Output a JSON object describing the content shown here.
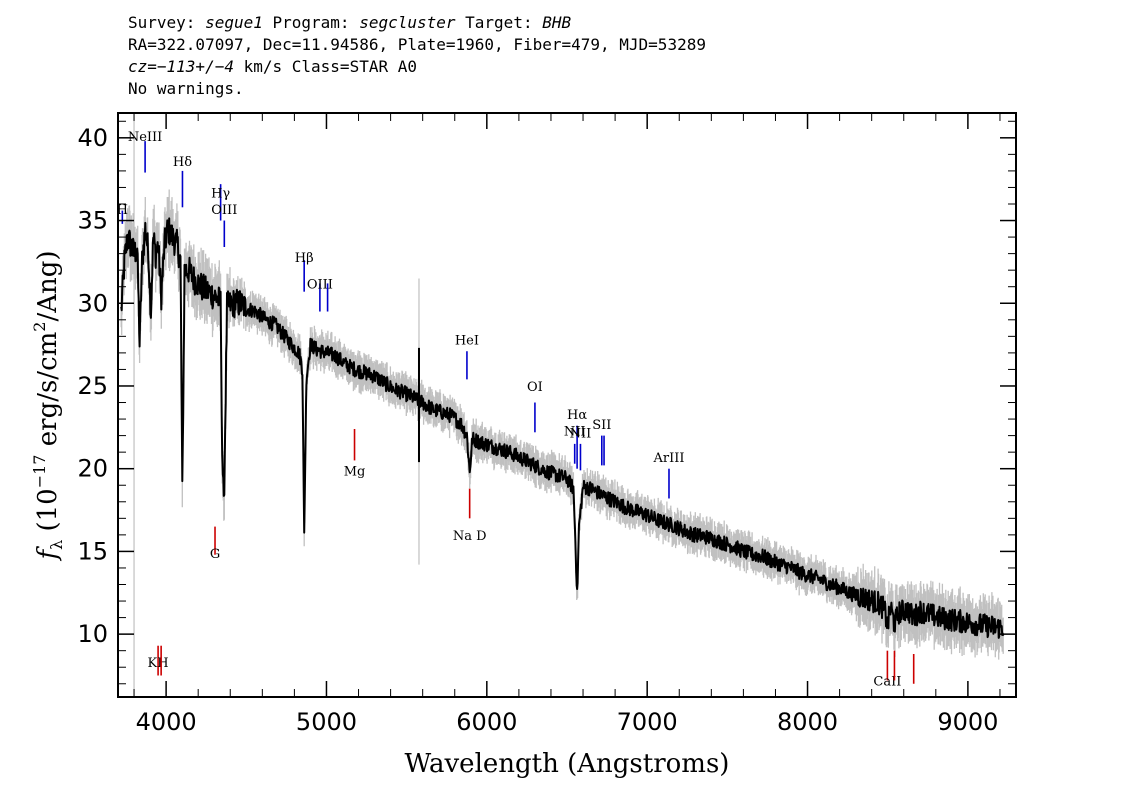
{
  "header": {
    "line1": {
      "survey_label": "Survey: ",
      "survey": "segue1",
      "program_label": " Program: ",
      "program": "segcluster",
      "target_label": " Target: ",
      "target": "BHB"
    },
    "line2": "RA=322.07097, Dec=11.94586, Plate=1960, Fiber=479, MJD=53289",
    "line3": {
      "cz": "cz=−113+/−4",
      "rest": " km/s Class=STAR A0"
    },
    "line4": "No warnings."
  },
  "chart_data": {
    "type": "line",
    "xlabel": "Wavelength (Angstroms)",
    "ylabel_parts": {
      "f": "f",
      "sub": "λ",
      "open": " (10",
      "exp": "−17",
      "mid": " erg/s/cm",
      "exp2": "2",
      "close": "/Ang)"
    },
    "xlim": [
      3700,
      9300
    ],
    "ylim": [
      6.2,
      41.5
    ],
    "x_ticks": [
      4000,
      5000,
      6000,
      7000,
      8000,
      9000
    ],
    "y_ticks": [
      10,
      15,
      20,
      25,
      30,
      35,
      40
    ],
    "grid": false,
    "colors": {
      "spectrum": "#000000",
      "error": "#c0c0c0",
      "emission": "#0000cc",
      "absorption": "#cc0000"
    },
    "series": [
      {
        "kind": "flux",
        "x": [
          3720,
          3740,
          3760,
          3780,
          3800,
          3820,
          3835,
          3850,
          3870,
          3890,
          3905,
          3920,
          3935,
          3950,
          3970,
          3990,
          4010,
          4040,
          4070,
          4090,
          4101,
          4115,
          4140,
          4170,
          4200,
          4240,
          4280,
          4320,
          4340,
          4350,
          4360,
          4380,
          4420,
          4460,
          4500,
          4560,
          4620,
          4680,
          4740,
          4800,
          4830,
          4850,
          4861,
          4875,
          4900,
          4940,
          5000,
          5060,
          5120,
          5180,
          5240,
          5300,
          5360,
          5420,
          5480,
          5540,
          5600,
          5660,
          5720,
          5780,
          5840,
          5876,
          5893,
          5910,
          5960,
          6020,
          6080,
          6140,
          6200,
          6260,
          6320,
          6380,
          6440,
          6500,
          6540,
          6555,
          6563,
          6575,
          6600,
          6650,
          6700,
          6760,
          6820,
          6880,
          6940,
          7000,
          7060,
          7120,
          7180,
          7240,
          7300,
          7360,
          7420,
          7480,
          7540,
          7600,
          7660,
          7720,
          7780,
          7840,
          7900,
          7960,
          8020,
          8080,
          8140,
          8200,
          8260,
          8320,
          8380,
          8440,
          8480,
          8498,
          8520,
          8542,
          8570,
          8620,
          8662,
          8700,
          8760,
          8820,
          8880,
          8940,
          9000,
          9060,
          9120,
          9180,
          9220
        ],
        "y": [
          29.5,
          32.5,
          34.0,
          33.5,
          33.0,
          33.3,
          27.5,
          32.5,
          34.5,
          33.0,
          29.5,
          34.0,
          33.0,
          33.5,
          30.5,
          33.5,
          34.5,
          34.0,
          33.5,
          32.5,
          18.5,
          32.0,
          32.0,
          31.5,
          31.2,
          30.8,
          30.6,
          30.3,
          30.0,
          21.0,
          17.5,
          29.8,
          30.0,
          30.0,
          29.7,
          29.5,
          29.0,
          28.7,
          28.0,
          27.3,
          27.0,
          26.0,
          16.0,
          25.5,
          27.5,
          27.2,
          27.0,
          26.8,
          26.3,
          26.0,
          25.8,
          25.6,
          25.2,
          24.8,
          24.6,
          24.3,
          24.0,
          23.6,
          23.4,
          23.2,
          22.7,
          22.0,
          19.8,
          21.8,
          21.6,
          21.4,
          21.2,
          21.0,
          20.7,
          20.4,
          20.1,
          19.8,
          19.6,
          19.4,
          18.8,
          15.0,
          12.3,
          16.5,
          18.9,
          18.8,
          18.5,
          18.2,
          17.9,
          17.6,
          17.4,
          17.2,
          16.9,
          16.7,
          16.5,
          16.2,
          16.0,
          15.9,
          15.7,
          15.5,
          15.3,
          15.0,
          14.8,
          14.7,
          14.4,
          14.2,
          14.0,
          13.7,
          13.5,
          13.3,
          13.0,
          12.8,
          12.5,
          12.3,
          12.1,
          11.9,
          11.5,
          10.5,
          11.6,
          10.6,
          11.3,
          11.5,
          11.0,
          11.4,
          11.2,
          11.0,
          10.9,
          10.8,
          10.7,
          10.6,
          10.5,
          10.4,
          10.4
        ]
      }
    ],
    "line_labels": [
      {
        "text": "NeIII",
        "x": 3869,
        "kind": "emission",
        "label_y": 39.8,
        "top": 39.8,
        "bottom": 37.9
      },
      {
        "text": "Hδ",
        "x": 4102,
        "kind": "emission",
        "label_y": 38.3,
        "top": 38.0,
        "bottom": 35.8
      },
      {
        "text": "Hγ",
        "x": 4340,
        "kind": "emission",
        "label_y": 36.4,
        "top": 37.2,
        "bottom": 35.0
      },
      {
        "text": "H",
        "x": 3727,
        "kind": "emission",
        "label_y": 35.4,
        "top": 35.6,
        "bottom": 34.8
      },
      {
        "text": "OIII",
        "x": 4363,
        "kind": "emission",
        "label_y": 35.4,
        "top": 35.0,
        "bottom": 33.4
      },
      {
        "text": "Hβ",
        "x": 4861,
        "kind": "emission",
        "label_y": 32.5,
        "top": 32.6,
        "bottom": 30.7
      },
      {
        "text": "OIII",
        "x": 4959,
        "kind": "emission",
        "label_y": 30.9,
        "top": 31.2,
        "bottom": 29.5
      },
      {
        "text": "",
        "x": 5007,
        "kind": "emission",
        "label_y": 0,
        "top": 31.2,
        "bottom": 29.5
      },
      {
        "text": "HeI",
        "x": 5876,
        "kind": "emission",
        "label_y": 27.5,
        "top": 27.1,
        "bottom": 25.4
      },
      {
        "text": "OI",
        "x": 6300,
        "kind": "emission",
        "label_y": 24.7,
        "top": 24.0,
        "bottom": 22.2
      },
      {
        "text": "Hα",
        "x": 6563,
        "kind": "emission",
        "label_y": 23.0,
        "top": 22.6,
        "bottom": 20.0
      },
      {
        "text": "NII",
        "x": 6548,
        "kind": "emission",
        "label_y": 22.0,
        "top": 21.5,
        "bottom": 20.3
      },
      {
        "text": "NII",
        "x": 6584,
        "kind": "emission",
        "label_y": 21.9,
        "top": 21.5,
        "bottom": 19.9
      },
      {
        "text": "SII",
        "x": 6717,
        "kind": "emission",
        "label_y": 22.4,
        "top": 22.0,
        "bottom": 20.2
      },
      {
        "text": "",
        "x": 6731,
        "kind": "emission",
        "label_y": 0,
        "top": 22.0,
        "bottom": 20.2
      },
      {
        "text": "ArIII",
        "x": 7136,
        "kind": "emission",
        "label_y": 20.4,
        "top": 20.0,
        "bottom": 18.2
      },
      {
        "text": "Mg",
        "x": 5175,
        "kind": "absorption",
        "label_y": 19.6,
        "top": 22.4,
        "bottom": 20.5
      },
      {
        "text": "G",
        "x": 4305,
        "kind": "absorption",
        "label_y": 14.6,
        "top": 16.5,
        "bottom": 14.8
      },
      {
        "text": "Na D",
        "x": 5893,
        "kind": "absorption",
        "label_y": 15.7,
        "top": 18.8,
        "bottom": 17.0
      },
      {
        "text": "KH",
        "x": 3950,
        "kind": "absorption",
        "label_y": 8.0,
        "top": 9.3,
        "bottom": 7.5
      },
      {
        "text": "",
        "x": 3969,
        "kind": "absorption",
        "label_y": 0,
        "top": 9.3,
        "bottom": 7.5
      },
      {
        "text": "CaII",
        "x": 8498,
        "kind": "absorption",
        "label_y": 6.9,
        "top": 9.0,
        "bottom": 7.2
      },
      {
        "text": "",
        "x": 8542,
        "kind": "absorption",
        "label_y": 0,
        "top": 9.0,
        "bottom": 7.2
      },
      {
        "text": "",
        "x": 8662,
        "kind": "absorption",
        "label_y": 0,
        "top": 8.8,
        "bottom": 7.0
      }
    ]
  }
}
